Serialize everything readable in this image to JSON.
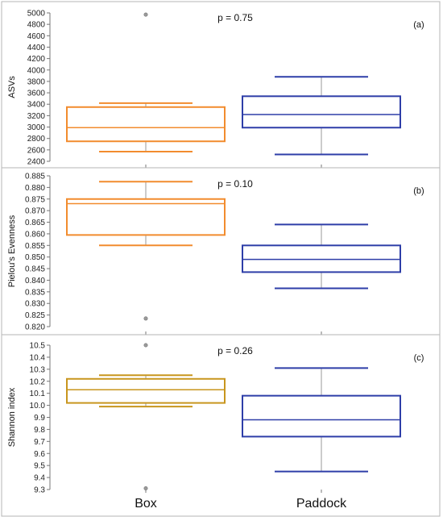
{
  "chart_data": [
    {
      "type": "box",
      "panel_label": "(a)",
      "p_value": "p = 0.75",
      "ylabel": "ASVs",
      "ylim": [
        2400,
        5000
      ],
      "yticks": [
        "2400",
        "2600",
        "2800",
        "3000",
        "3200",
        "3400",
        "3600",
        "3800",
        "4000",
        "4200",
        "4400",
        "4600",
        "4800",
        "5000"
      ],
      "categories": [
        "Box",
        "Paddock"
      ],
      "colors": [
        "#f28c2e",
        "#2e3ea8"
      ],
      "boxes": [
        {
          "category": "Box",
          "whisker_low": 2570,
          "q1": 2750,
          "median": 2990,
          "q3": 3350,
          "whisker_high": 3420,
          "outliers": [
            4970
          ]
        },
        {
          "category": "Paddock",
          "whisker_low": 2520,
          "q1": 2990,
          "median": 3220,
          "q3": 3540,
          "whisker_high": 3880,
          "outliers": []
        }
      ]
    },
    {
      "type": "box",
      "panel_label": "(b)",
      "p_value": "p = 0.10",
      "ylabel": "Pielou's Evenness",
      "ylim": [
        0.82,
        0.885
      ],
      "yticks": [
        "0.820",
        "0.825",
        "0.830",
        "0.835",
        "0.840",
        "0.845",
        "0.850",
        "0.855",
        "0.860",
        "0.865",
        "0.870",
        "0.875",
        "0.880",
        "0.885"
      ],
      "categories": [
        "Box",
        "Paddock"
      ],
      "colors": [
        "#f28c2e",
        "#2e3ea8"
      ],
      "boxes": [
        {
          "category": "Box",
          "whisker_low": 0.855,
          "q1": 0.8595,
          "median": 0.873,
          "q3": 0.875,
          "whisker_high": 0.8825,
          "outliers": [
            0.8235
          ]
        },
        {
          "category": "Paddock",
          "whisker_low": 0.8365,
          "q1": 0.8435,
          "median": 0.849,
          "q3": 0.855,
          "whisker_high": 0.864,
          "outliers": []
        }
      ]
    },
    {
      "type": "box",
      "panel_label": "(c)",
      "p_value": "p = 0.26",
      "ylabel": "Shannon index",
      "ylim": [
        9.3,
        10.5
      ],
      "yticks": [
        "9.3",
        "9.4",
        "9.5",
        "9.6",
        "9.7",
        "9.8",
        "9.9",
        "10.0",
        "10.1",
        "10.2",
        "10.3",
        "10.4",
        "10.5"
      ],
      "categories": [
        "Box",
        "Paddock"
      ],
      "colors": [
        "#c8961e",
        "#2e3ea8"
      ],
      "boxes": [
        {
          "category": "Box",
          "whisker_low": 9.99,
          "q1": 10.02,
          "median": 10.13,
          "q3": 10.22,
          "whisker_high": 10.25,
          "outliers": [
            10.5,
            9.31
          ]
        },
        {
          "category": "Paddock",
          "whisker_low": 9.45,
          "q1": 9.74,
          "median": 9.88,
          "q3": 10.08,
          "whisker_high": 10.31,
          "outliers": []
        }
      ]
    }
  ],
  "x_category_labels": [
    "Box",
    "Paddock"
  ]
}
